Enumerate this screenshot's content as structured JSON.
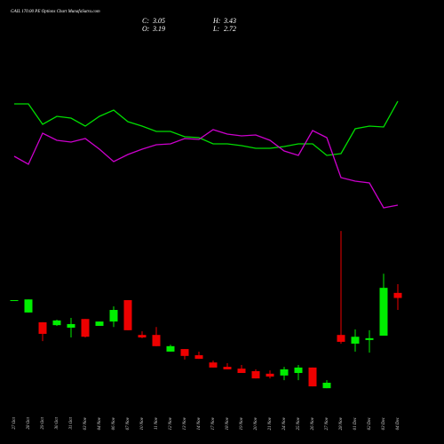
{
  "chart_data": {
    "type": "candlestick",
    "title": "GAIL 170.00 PE Options Chart MunafaSutra.com",
    "ohlc_labels": {
      "close": "C:",
      "high": "H:",
      "open": "O:",
      "low": "L:"
    },
    "categories": [
      "27 Oct",
      "28 Oct",
      "29 Oct",
      "30 Oct",
      "31 Oct",
      "03 Nov",
      "04 Nov",
      "06 Nov",
      "07 Nov",
      "10 Nov",
      "11 Nov",
      "12 Nov",
      "13 Nov",
      "14 Nov",
      "17 Nov",
      "18 Nov",
      "19 Nov",
      "20 Nov",
      "21 Nov",
      "24 Nov",
      "25 Nov",
      "26 Nov",
      "27 Nov",
      "28 Nov",
      "01 Dec",
      "02 Dec",
      "03 Dec",
      "04 Dec"
    ],
    "open": [
      2.99,
      2.65,
      2.38,
      2.3,
      2.23,
      2.47,
      2.28,
      2.4,
      2.99,
      2.03,
      2.03,
      1.57,
      1.64,
      1.47,
      1.27,
      1.15,
      1.1,
      1.03,
      0.96,
      0.91,
      0.98,
      1.13,
      0.56,
      2.03,
      1.79,
      1.89,
      2.01,
      3.19
    ],
    "high": [
      2.99,
      3.01,
      2.38,
      2.45,
      2.5,
      2.47,
      2.4,
      2.82,
      2.99,
      2.13,
      2.25,
      1.76,
      1.64,
      1.57,
      1.32,
      1.25,
      1.2,
      1.08,
      1.05,
      1.15,
      1.2,
      1.13,
      0.78,
      4.9,
      2.18,
      2.16,
      3.72,
      3.43
    ],
    "low": [
      2.99,
      2.65,
      1.86,
      2.28,
      1.96,
      1.96,
      2.28,
      2.25,
      2.16,
      1.94,
      1.72,
      1.57,
      1.35,
      1.37,
      1.13,
      1.08,
      0.98,
      0.83,
      0.83,
      0.78,
      0.78,
      0.61,
      0.56,
      1.79,
      1.57,
      1.54,
      2.01,
      2.72
    ],
    "close": [
      2.99,
      3.01,
      2.06,
      2.43,
      2.33,
      1.98,
      2.4,
      2.72,
      2.16,
      1.96,
      1.72,
      1.72,
      1.45,
      1.37,
      1.13,
      1.08,
      0.98,
      0.83,
      0.88,
      1.08,
      1.13,
      0.61,
      0.71,
      1.84,
      1.98,
      1.94,
      3.33,
      3.05
    ],
    "up_color": "#00ee00",
    "down_color": "#ee0000",
    "ylim": [
      0,
      5
    ],
    "indicator_ylim": [
      0,
      150
    ],
    "series": [
      {
        "color": "#00dd00",
        "values": [
          133,
          133,
          110,
          119,
          117,
          108,
          119,
          126,
          113,
          108,
          102,
          102,
          96,
          95,
          88,
          88,
          86,
          83,
          83,
          85,
          88,
          88,
          75,
          77,
          105,
          108,
          107,
          136
        ]
      },
      {
        "color": "#cc00cc",
        "values": [
          74,
          65,
          100,
          92,
          90,
          94,
          82,
          68,
          76,
          82,
          87,
          88,
          94,
          93,
          104,
          99,
          97,
          98,
          92,
          80,
          75,
          103,
          95,
          50,
          46,
          44,
          16,
          19
        ]
      }
    ]
  }
}
